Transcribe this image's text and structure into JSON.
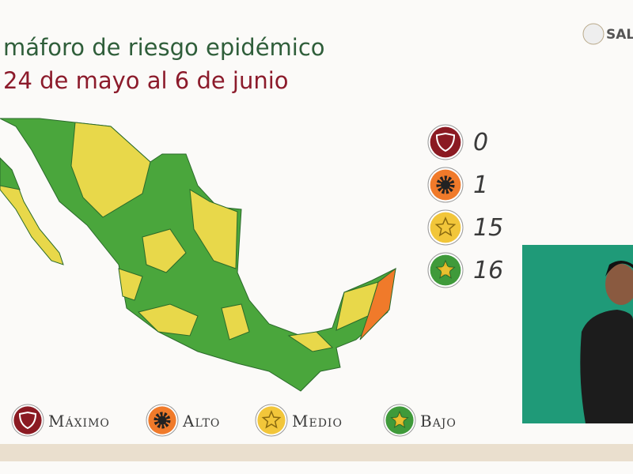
{
  "header": {
    "title": "máforo de riesgo epidémico",
    "subtitle": "24 de mayo al 6 de junio",
    "logo": "SAL"
  },
  "counts": [
    {
      "value": 0,
      "color": "#8b1a22"
    },
    {
      "value": 1,
      "color": "#f07a2a"
    },
    {
      "value": 15,
      "color": "#f2c63a"
    },
    {
      "value": 16,
      "color": "#3f9a3a"
    }
  ],
  "legend": [
    {
      "label": "Máximo",
      "color": "#8b1a22"
    },
    {
      "label": "Alto",
      "color": "#f07a2a"
    },
    {
      "label": "Medio",
      "color": "#f2c63a"
    },
    {
      "label": "Bajo",
      "color": "#3f9a3a"
    }
  ]
}
